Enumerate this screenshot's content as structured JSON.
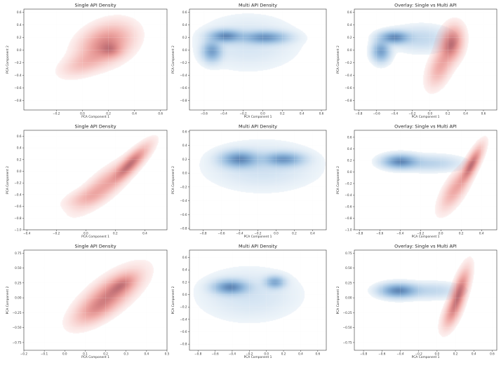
{
  "figure": {
    "description": "3x3 grid of PCA kernel density plots comparing Single API and Multi API samples"
  },
  "colors": {
    "single": "#e8574e",
    "multi": "#3d85c6"
  },
  "chart_data": [
    {
      "type": "density",
      "title": "Single API Density",
      "xlabel": "PCA Component 1",
      "ylabel": "PCA Component 2",
      "xlim": [
        -0.45,
        0.65
      ],
      "ylim": [
        -0.95,
        0.65
      ],
      "xticks": [
        -0.2,
        0.0,
        0.2,
        0.4,
        0.6
      ],
      "yticks": [
        -0.8,
        -0.6,
        -0.4,
        -0.2,
        0.0,
        0.2,
        0.4,
        0.6
      ],
      "xtick_labels": [
        "−0.2",
        "0.0",
        "0.2",
        "0.4",
        "0.6"
      ],
      "ytick_labels": [
        "−0.8",
        "−0.6",
        "−0.4",
        "−0.2",
        "0.0",
        "0.2",
        "0.4",
        "0.6"
      ],
      "series": [
        {
          "name": "Single API",
          "color": "single",
          "clusters": [
            {
              "cx": 0.18,
              "cy": 0.1,
              "sx": 0.11,
              "sy": 0.17,
              "rho": 0.3,
              "w": 1.0
            },
            {
              "cx": 0.02,
              "cy": -0.2,
              "sx": 0.1,
              "sy": 0.12,
              "rho": 0.5,
              "w": 0.35
            },
            {
              "cx": 0.22,
              "cy": 0.0,
              "sx": 0.05,
              "sy": 0.07,
              "rho": 0.0,
              "w": 0.5
            }
          ]
        }
      ]
    },
    {
      "type": "density",
      "title": "Multi API Density",
      "xlabel": "PCA Component 1",
      "ylabel": "PCA Component 2",
      "xlim": [
        -0.75,
        0.65
      ],
      "ylim": [
        -0.95,
        0.65
      ],
      "xticks": [
        -0.6,
        -0.4,
        -0.2,
        0.0,
        0.2,
        0.4,
        0.6
      ],
      "yticks": [
        -0.8,
        -0.6,
        -0.4,
        -0.2,
        0.0,
        0.2,
        0.4,
        0.6
      ],
      "xtick_labels": [
        "−0.6",
        "−0.4",
        "−0.2",
        "0.0",
        "0.2",
        "0.4",
        "0.6"
      ],
      "ytick_labels": [
        "−0.8",
        "−0.6",
        "−0.4",
        "−0.2",
        "0.0",
        "0.2",
        "0.4",
        "0.6"
      ],
      "series": [
        {
          "name": "Multi API",
          "color": "multi",
          "clusters": [
            {
              "cx": -0.38,
              "cy": 0.22,
              "sx": 0.1,
              "sy": 0.06,
              "rho": 0.0,
              "w": 1.0
            },
            {
              "cx": 0.02,
              "cy": 0.2,
              "sx": 0.14,
              "sy": 0.06,
              "rho": 0.0,
              "w": 0.9
            },
            {
              "cx": -0.52,
              "cy": -0.02,
              "sx": 0.06,
              "sy": 0.1,
              "rho": 0.0,
              "w": 0.8
            },
            {
              "cx": -0.15,
              "cy": 0.12,
              "sx": 0.3,
              "sy": 0.25,
              "rho": 0.0,
              "w": 0.12
            }
          ]
        }
      ]
    },
    {
      "type": "density",
      "title": "Overlay: Single vs Multi API",
      "xlabel": "PCA Component 1",
      "ylabel": "PCA Component 2",
      "xlim": [
        -0.85,
        0.75
      ],
      "ylim": [
        -0.95,
        0.65
      ],
      "xticks": [
        -0.8,
        -0.6,
        -0.4,
        -0.2,
        0.0,
        0.2,
        0.4,
        0.6
      ],
      "yticks": [
        -0.8,
        -0.6,
        -0.4,
        -0.2,
        0.0,
        0.2,
        0.4,
        0.6
      ],
      "xtick_labels": [
        "−0.8",
        "−0.6",
        "−0.4",
        "−0.2",
        "0.0",
        "0.2",
        "0.4",
        "0.6"
      ],
      "ytick_labels": [
        "−0.8",
        "−0.6",
        "−0.4",
        "−0.2",
        "0.0",
        "0.2",
        "0.4",
        "0.6"
      ],
      "series": [
        {
          "name": "Multi API",
          "color": "multi",
          "clusters": [
            {
              "cx": -0.4,
              "cy": 0.2,
              "sx": 0.1,
              "sy": 0.06,
              "rho": 0.0,
              "w": 1.0
            },
            {
              "cx": -0.55,
              "cy": -0.02,
              "sx": 0.06,
              "sy": 0.1,
              "rho": 0.0,
              "w": 0.8
            },
            {
              "cx": -0.1,
              "cy": 0.18,
              "sx": 0.2,
              "sy": 0.12,
              "rho": 0.0,
              "w": 0.2
            }
          ]
        },
        {
          "name": "Single API",
          "color": "single",
          "clusters": [
            {
              "cx": 0.24,
              "cy": 0.1,
              "sx": 0.07,
              "sy": 0.15,
              "rho": 0.2,
              "w": 1.0
            },
            {
              "cx": 0.12,
              "cy": -0.25,
              "sx": 0.08,
              "sy": 0.18,
              "rho": 0.5,
              "w": 0.45
            }
          ]
        }
      ]
    },
    {
      "type": "density",
      "title": "Single API Density",
      "xlabel": "PCA Component 1",
      "ylabel": "PCA Component 2",
      "xlim": [
        -0.42,
        0.55
      ],
      "ylim": [
        -1.0,
        0.7
      ],
      "xticks": [
        -0.4,
        -0.2,
        0.0,
        0.2,
        0.4
      ],
      "yticks": [
        -1.0,
        -0.8,
        -0.6,
        -0.4,
        -0.2,
        0.0,
        0.2,
        0.4,
        0.6
      ],
      "xtick_labels": [
        "−0.4",
        "−0.2",
        "0.0",
        "0.2",
        "0.4"
      ],
      "ytick_labels": [
        "−1.0",
        "−0.8",
        "−0.6",
        "−0.4",
        "−0.2",
        "0.0",
        "0.2",
        "0.4",
        "0.6"
      ],
      "series": [
        {
          "name": "Single API",
          "color": "single",
          "clusters": [
            {
              "cx": 0.3,
              "cy": 0.12,
              "sx": 0.07,
              "sy": 0.18,
              "rho": 0.85,
              "w": 1.0
            },
            {
              "cx": 0.12,
              "cy": -0.25,
              "sx": 0.1,
              "sy": 0.22,
              "rho": 0.8,
              "w": 0.45
            },
            {
              "cx": 0.0,
              "cy": -0.45,
              "sx": 0.08,
              "sy": 0.1,
              "rho": 0.5,
              "w": 0.2
            }
          ]
        }
      ]
    },
    {
      "type": "density",
      "title": "Multi API Density",
      "xlabel": "PCA Component 1",
      "ylabel": "PCA Component 2",
      "xlim": [
        -0.95,
        0.55
      ],
      "ylim": [
        -0.82,
        0.62
      ],
      "xticks": [
        -0.8,
        -0.6,
        -0.4,
        -0.2,
        0.0,
        0.2,
        0.4
      ],
      "yticks": [
        -0.8,
        -0.6,
        -0.4,
        -0.2,
        0.0,
        0.2,
        0.4,
        0.6
      ],
      "xtick_labels": [
        "−0.8",
        "−0.6",
        "−0.4",
        "−0.2",
        "0.0",
        "0.2",
        "0.4"
      ],
      "ytick_labels": [
        "−0.8",
        "−0.6",
        "−0.4",
        "−0.2",
        "0.0",
        "0.2",
        "0.4",
        "0.6"
      ],
      "series": [
        {
          "name": "Multi API",
          "color": "multi",
          "clusters": [
            {
              "cx": -0.4,
              "cy": 0.2,
              "sx": 0.12,
              "sy": 0.07,
              "rho": 0.0,
              "w": 1.0
            },
            {
              "cx": 0.08,
              "cy": 0.2,
              "sx": 0.13,
              "sy": 0.06,
              "rho": 0.0,
              "w": 0.85
            },
            {
              "cx": -0.15,
              "cy": 0.1,
              "sx": 0.35,
              "sy": 0.2,
              "rho": 0.0,
              "w": 0.15
            }
          ]
        }
      ]
    },
    {
      "type": "density",
      "title": "Overlay: Single vs Multi API",
      "xlabel": "PCA Component 1",
      "ylabel": "PCA Component 2",
      "xlim": [
        -0.85,
        0.55
      ],
      "ylim": [
        -1.0,
        0.72
      ],
      "xticks": [
        -0.8,
        -0.6,
        -0.4,
        -0.2,
        0.0,
        0.2,
        0.4
      ],
      "yticks": [
        -1.0,
        -0.8,
        -0.6,
        -0.4,
        -0.2,
        0.0,
        0.2,
        0.4,
        0.6
      ],
      "xtick_labels": [
        "−0.8",
        "−0.6",
        "−0.4",
        "−0.2",
        "0.0",
        "0.2",
        "0.4"
      ],
      "ytick_labels": [
        "−1.0",
        "−0.8",
        "−0.6",
        "−0.4",
        "−0.2",
        "0.0",
        "0.2",
        "0.4",
        "0.6"
      ],
      "series": [
        {
          "name": "Multi API",
          "color": "multi",
          "clusters": [
            {
              "cx": -0.4,
              "cy": 0.18,
              "sx": 0.1,
              "sy": 0.07,
              "rho": 0.0,
              "w": 1.0
            },
            {
              "cx": -0.1,
              "cy": 0.15,
              "sx": 0.18,
              "sy": 0.08,
              "rho": 0.0,
              "w": 0.25
            }
          ]
        },
        {
          "name": "Single API",
          "color": "single",
          "clusters": [
            {
              "cx": 0.3,
              "cy": 0.12,
              "sx": 0.06,
              "sy": 0.18,
              "rho": 0.8,
              "w": 1.0
            },
            {
              "cx": 0.14,
              "cy": -0.3,
              "sx": 0.08,
              "sy": 0.2,
              "rho": 0.7,
              "w": 0.45
            }
          ]
        }
      ]
    },
    {
      "type": "density",
      "title": "Single API Density",
      "xlabel": "PCA Component 1",
      "ylabel": "PCA Component 2",
      "xlim": [
        -0.2,
        0.5
      ],
      "ylim": [
        -0.88,
        0.8
      ],
      "xticks": [
        -0.2,
        -0.1,
        0.0,
        0.1,
        0.2,
        0.3,
        0.4,
        0.5
      ],
      "yticks": [
        -0.75,
        -0.5,
        -0.25,
        0.0,
        0.25,
        0.5,
        0.75
      ],
      "xtick_labels": [
        "−0.2",
        "−0.1",
        "0.0",
        "0.1",
        "0.2",
        "0.3",
        "0.4",
        "0.5"
      ],
      "ytick_labels": [
        "−0.75",
        "−0.50",
        "−0.25",
        "0.00",
        "0.25",
        "0.50",
        "0.75"
      ],
      "series": [
        {
          "name": "Single API",
          "color": "single",
          "clusters": [
            {
              "cx": 0.22,
              "cy": 0.05,
              "sx": 0.08,
              "sy": 0.22,
              "rho": 0.7,
              "w": 1.0
            },
            {
              "cx": 0.28,
              "cy": 0.22,
              "sx": 0.04,
              "sy": 0.1,
              "rho": 0.5,
              "w": 0.6
            },
            {
              "cx": 0.15,
              "cy": -0.2,
              "sx": 0.06,
              "sy": 0.15,
              "rho": 0.6,
              "w": 0.45
            }
          ]
        }
      ]
    },
    {
      "type": "density",
      "title": "Multi API Density",
      "xlabel": "PCA Component 1",
      "ylabel": "PCA Component 2",
      "xlim": [
        -0.9,
        0.7
      ],
      "ylim": [
        -0.9,
        0.72
      ],
      "xticks": [
        -0.8,
        -0.6,
        -0.4,
        -0.2,
        0.0,
        0.2,
        0.4,
        0.6
      ],
      "yticks": [
        -0.8,
        -0.6,
        -0.4,
        -0.2,
        0.0,
        0.2,
        0.4,
        0.6
      ],
      "xtick_labels": [
        "−0.8",
        "−0.6",
        "−0.4",
        "−0.2",
        "0.0",
        "0.2",
        "0.4",
        "0.6"
      ],
      "ytick_labels": [
        "−0.8",
        "−0.6",
        "−0.4",
        "−0.2",
        "0.0",
        "0.2",
        "0.4",
        "0.6"
      ],
      "series": [
        {
          "name": "Multi API",
          "color": "multi",
          "clusters": [
            {
              "cx": -0.42,
              "cy": 0.12,
              "sx": 0.12,
              "sy": 0.07,
              "rho": 0.0,
              "w": 1.0
            },
            {
              "cx": 0.1,
              "cy": 0.2,
              "sx": 0.07,
              "sy": 0.06,
              "rho": 0.0,
              "w": 0.7
            },
            {
              "cx": -0.2,
              "cy": 0.0,
              "sx": 0.35,
              "sy": 0.25,
              "rho": 0.0,
              "w": 0.12
            }
          ]
        }
      ]
    },
    {
      "type": "density",
      "title": "Overlay: Single vs Multi API",
      "xlabel": "PCA Component 1",
      "ylabel": "PCA Component 2",
      "xlim": [
        -0.9,
        0.65
      ],
      "ylim": [
        -0.88,
        0.8
      ],
      "xticks": [
        -0.8,
        -0.6,
        -0.4,
        -0.2,
        0.0,
        0.2,
        0.4,
        0.6
      ],
      "yticks": [
        -0.75,
        -0.5,
        -0.25,
        0.0,
        0.25,
        0.5,
        0.75
      ],
      "xtick_labels": [
        "−0.8",
        "−0.6",
        "−0.4",
        "−0.2",
        "0.0",
        "0.2",
        "0.4",
        "0.6"
      ],
      "ytick_labels": [
        "−0.75",
        "−0.50",
        "−0.25",
        "0.00",
        "0.25",
        "0.50",
        "0.75"
      ],
      "series": [
        {
          "name": "Multi API",
          "color": "multi",
          "clusters": [
            {
              "cx": -0.42,
              "cy": 0.12,
              "sx": 0.12,
              "sy": 0.07,
              "rho": 0.0,
              "w": 1.0
            },
            {
              "cx": -0.05,
              "cy": 0.12,
              "sx": 0.18,
              "sy": 0.08,
              "rho": 0.0,
              "w": 0.2
            }
          ]
        },
        {
          "name": "Single API",
          "color": "single",
          "clusters": [
            {
              "cx": 0.24,
              "cy": 0.08,
              "sx": 0.06,
              "sy": 0.22,
              "rho": 0.7,
              "w": 1.0
            },
            {
              "cx": 0.16,
              "cy": -0.25,
              "sx": 0.06,
              "sy": 0.16,
              "rho": 0.6,
              "w": 0.45
            }
          ]
        }
      ]
    }
  ]
}
